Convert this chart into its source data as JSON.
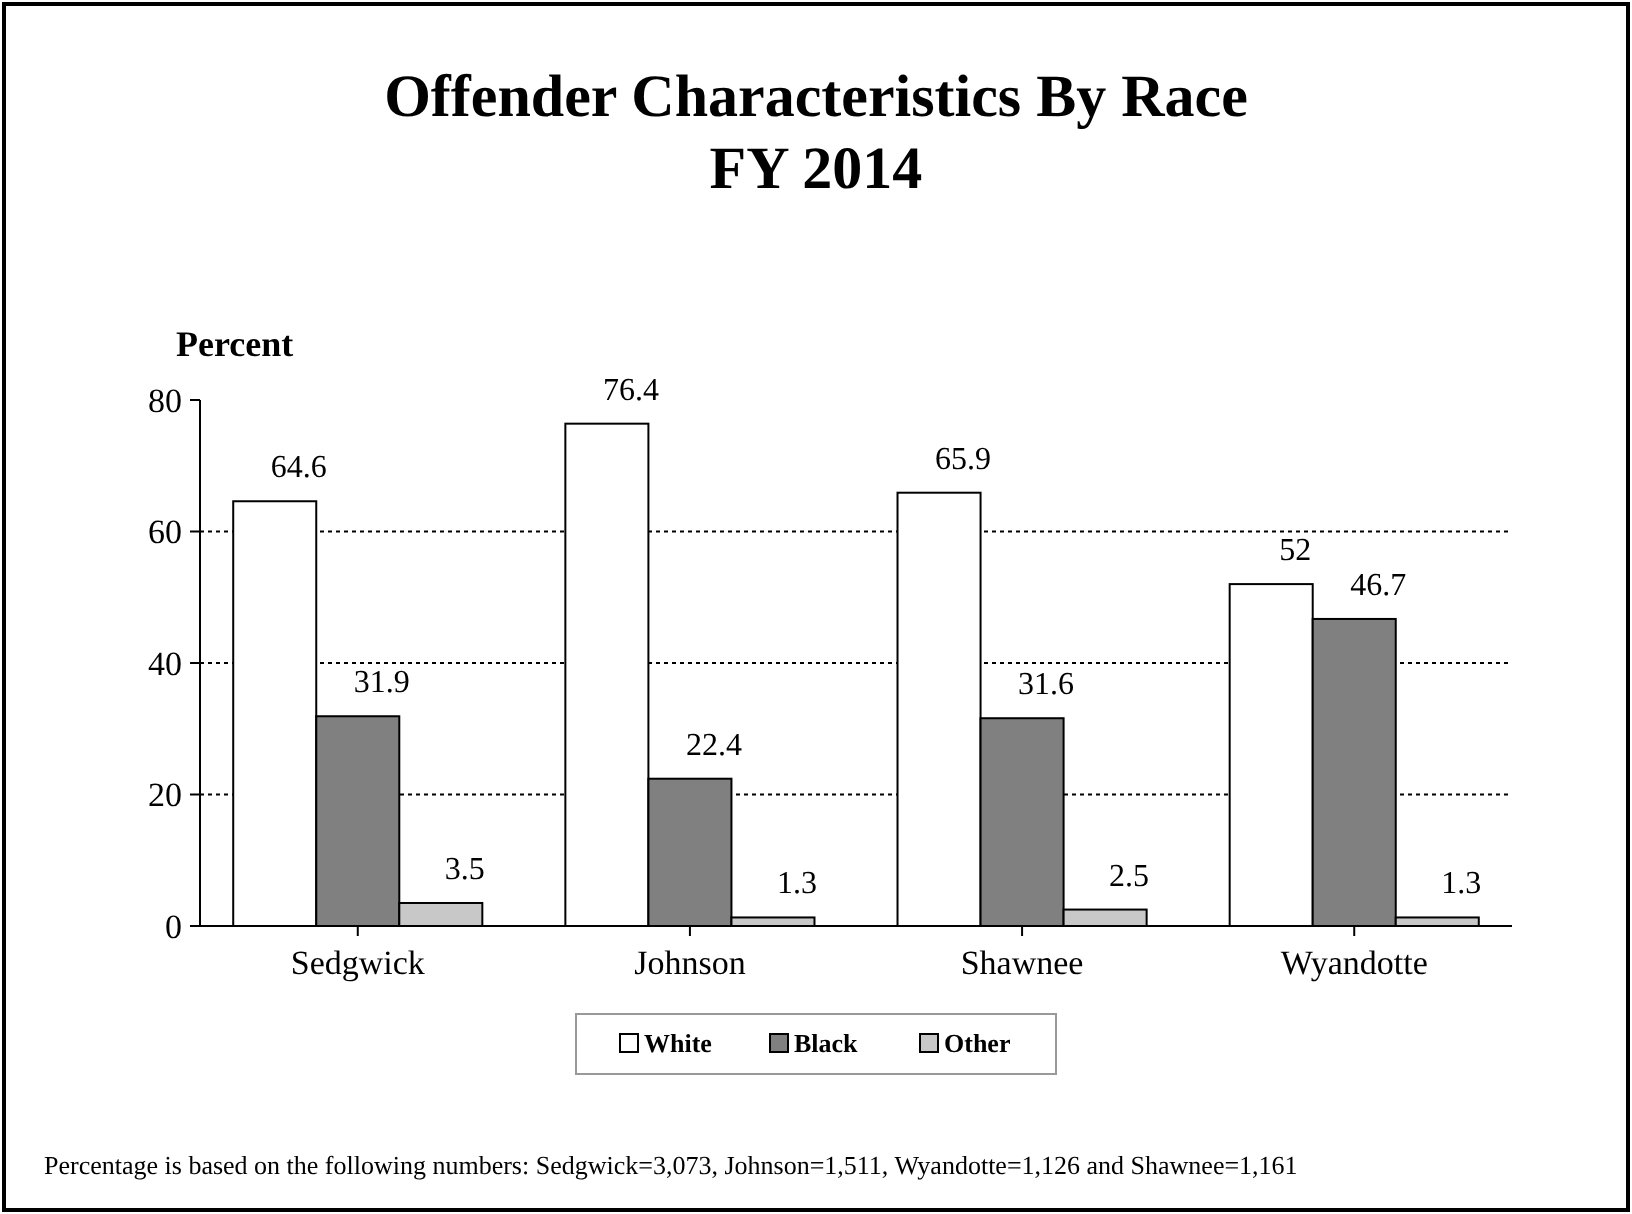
{
  "chart_data": {
    "type": "bar",
    "title": "Offender Characteristics By Race\nFY 2014",
    "ylabel": "Percent",
    "categories": [
      "Sedgwick",
      "Johnson",
      "Shawnee",
      "Wyandotte"
    ],
    "series": [
      {
        "name": "White",
        "color": "#ffffff",
        "values": [
          64.6,
          76.4,
          65.9,
          52
        ]
      },
      {
        "name": "Black",
        "color": "#808080",
        "values": [
          31.9,
          22.4,
          31.6,
          46.7
        ]
      },
      {
        "name": "Other",
        "color": "#c8c8c8",
        "values": [
          3.5,
          1.3,
          2.5,
          1.3
        ]
      }
    ],
    "ylim": [
      0,
      80
    ],
    "yticks": [
      0,
      20,
      40,
      60,
      80
    ],
    "grid": "y",
    "legend": "bottom",
    "data_labels": true,
    "annotations": [
      "Percentage is based on the following numbers: Sedgwick=3,073, Johnson=1,511, Wyandotte=1,126 and Shawnee=1,161"
    ]
  }
}
